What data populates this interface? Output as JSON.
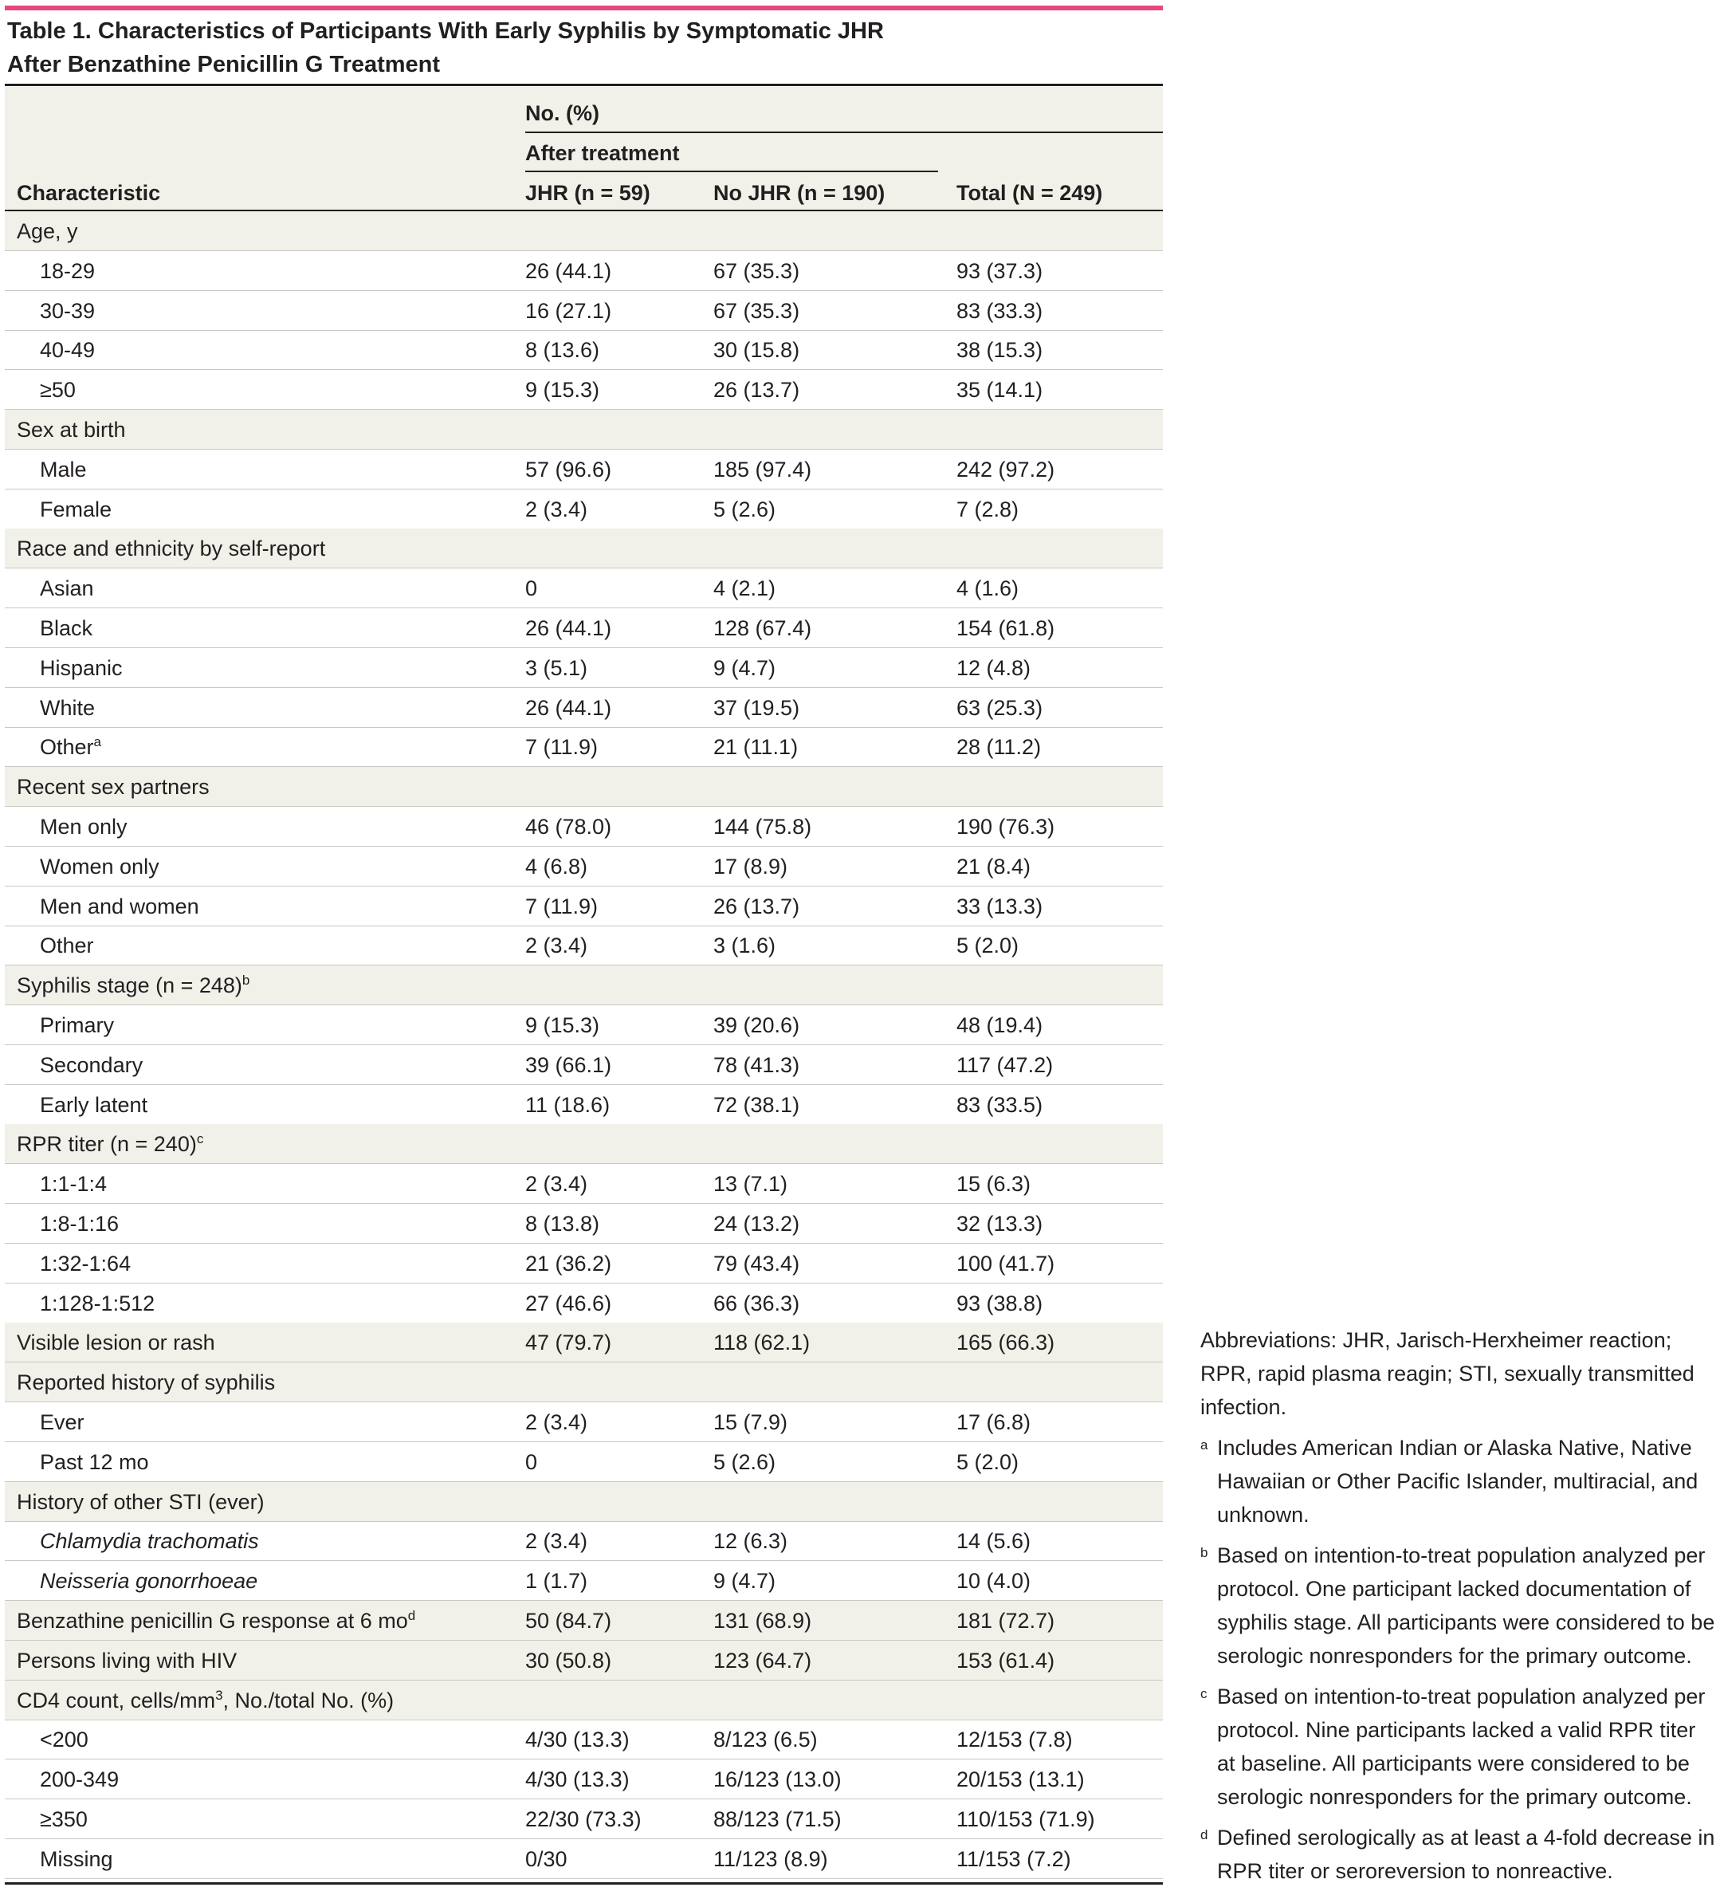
{
  "table": {
    "title_line1": "Table 1. Characteristics of Participants With Early Syphilis by Symptomatic JHR",
    "title_line2": "After Benzathine Penicillin G Treatment",
    "header": {
      "no_pct": "No. (%)",
      "after_treatment": "After treatment",
      "characteristic": "Characteristic",
      "jhr": "JHR (n = 59)",
      "nojhr": "No JHR (n = 190)",
      "total": "Total (N = 249)"
    },
    "rows": [
      {
        "label": "Age, y",
        "level": 0,
        "jhr": "",
        "nojhr": "",
        "total": ""
      },
      {
        "label": "18-29",
        "level": 1,
        "jhr": "26 (44.1)",
        "nojhr": "67 (35.3)",
        "total": "93 (37.3)"
      },
      {
        "label": "30-39",
        "level": 1,
        "jhr": "16 (27.1)",
        "nojhr": "67 (35.3)",
        "total": "83 (33.3)"
      },
      {
        "label": "40-49",
        "level": 1,
        "jhr": "8 (13.6)",
        "nojhr": "30 (15.8)",
        "total": "38 (15.3)"
      },
      {
        "label": "≥50",
        "level": 1,
        "jhr": "9 (15.3)",
        "nojhr": "26 (13.7)",
        "total": "35 (14.1)"
      },
      {
        "label": "Sex at birth",
        "level": 0,
        "jhr": "",
        "nojhr": "",
        "total": ""
      },
      {
        "label": "Male",
        "level": 1,
        "jhr": "57 (96.6)",
        "nojhr": "185 (97.4)",
        "total": "242 (97.2)"
      },
      {
        "label": "Female",
        "level": 1,
        "jhr": "2 (3.4)",
        "nojhr": "5 (2.6)",
        "total": "7 (2.8)"
      },
      {
        "label": "Race and ethnicity by self-report",
        "level": 0,
        "jhr": "",
        "nojhr": "",
        "total": ""
      },
      {
        "label": "Asian",
        "level": 1,
        "jhr": "0",
        "nojhr": "4 (2.1)",
        "total": "4 (1.6)"
      },
      {
        "label": "Black",
        "level": 1,
        "jhr": "26 (44.1)",
        "nojhr": "128 (67.4)",
        "total": "154 (61.8)"
      },
      {
        "label": "Hispanic",
        "level": 1,
        "jhr": "3 (5.1)",
        "nojhr": "9 (4.7)",
        "total": "12 (4.8)"
      },
      {
        "label": "White",
        "level": 1,
        "jhr": "26 (44.1)",
        "nojhr": "37 (19.5)",
        "total": "63 (25.3)"
      },
      {
        "label": "Other",
        "sup": "a",
        "level": 1,
        "jhr": "7 (11.9)",
        "nojhr": "21 (11.1)",
        "total": "28 (11.2)"
      },
      {
        "label": "Recent sex partners",
        "level": 0,
        "jhr": "",
        "nojhr": "",
        "total": ""
      },
      {
        "label": "Men only",
        "level": 1,
        "jhr": "46 (78.0)",
        "nojhr": "144 (75.8)",
        "total": "190 (76.3)"
      },
      {
        "label": "Women only",
        "level": 1,
        "jhr": "4 (6.8)",
        "nojhr": "17 (8.9)",
        "total": "21 (8.4)"
      },
      {
        "label": "Men and women",
        "level": 1,
        "jhr": "7 (11.9)",
        "nojhr": "26 (13.7)",
        "total": "33 (13.3)"
      },
      {
        "label": "Other",
        "level": 1,
        "jhr": "2 (3.4)",
        "nojhr": "3 (1.6)",
        "total": "5 (2.0)"
      },
      {
        "label": "Syphilis stage (n = 248)",
        "sup": "b",
        "level": 0,
        "jhr": "",
        "nojhr": "",
        "total": ""
      },
      {
        "label": "Primary",
        "level": 1,
        "jhr": "9 (15.3)",
        "nojhr": "39 (20.6)",
        "total": "48 (19.4)"
      },
      {
        "label": "Secondary",
        "level": 1,
        "jhr": "39 (66.1)",
        "nojhr": "78 (41.3)",
        "total": "117 (47.2)"
      },
      {
        "label": "Early latent",
        "level": 1,
        "jhr": "11 (18.6)",
        "nojhr": "72 (38.1)",
        "total": "83 (33.5)"
      },
      {
        "label": "RPR titer (n = 240)",
        "sup": "c",
        "level": 0,
        "jhr": "",
        "nojhr": "",
        "total": ""
      },
      {
        "label": "1:1-1:4",
        "level": 1,
        "jhr": "2 (3.4)",
        "nojhr": "13 (7.1)",
        "total": "15 (6.3)"
      },
      {
        "label": "1:8-1:16",
        "level": 1,
        "jhr": "8 (13.8)",
        "nojhr": "24 (13.2)",
        "total": "32 (13.3)"
      },
      {
        "label": "1:32-1:64",
        "level": 1,
        "jhr": "21 (36.2)",
        "nojhr": "79 (43.4)",
        "total": "100 (41.7)"
      },
      {
        "label": "1:128-1:512",
        "level": 1,
        "jhr": "27 (46.6)",
        "nojhr": "66 (36.3)",
        "total": "93 (38.8)"
      },
      {
        "label": "Visible lesion or rash",
        "level": 0,
        "jhr": "47 (79.7)",
        "nojhr": "118 (62.1)",
        "total": "165 (66.3)"
      },
      {
        "label": "Reported history of syphilis",
        "level": 0,
        "jhr": "",
        "nojhr": "",
        "total": ""
      },
      {
        "label": "Ever",
        "level": 1,
        "jhr": "2 (3.4)",
        "nojhr": "15 (7.9)",
        "total": "17 (6.8)"
      },
      {
        "label": "Past 12 mo",
        "level": 1,
        "jhr": "0",
        "nojhr": "5 (2.6)",
        "total": "5 (2.0)"
      },
      {
        "label": "History of other STI (ever)",
        "level": 0,
        "jhr": "",
        "nojhr": "",
        "total": ""
      },
      {
        "label": "Chlamydia trachomatis",
        "italic": true,
        "level": 1,
        "jhr": "2 (3.4)",
        "nojhr": "12 (6.3)",
        "total": "14 (5.6)"
      },
      {
        "label": "Neisseria gonorrhoeae",
        "italic": true,
        "level": 1,
        "jhr": "1 (1.7)",
        "nojhr": "9 (4.7)",
        "total": "10 (4.0)"
      },
      {
        "label": "Benzathine penicillin G response at 6 mo",
        "sup": "d",
        "level": 0,
        "jhr": "50 (84.7)",
        "nojhr": "131 (68.9)",
        "total": "181 (72.7)"
      },
      {
        "label": "Persons living with HIV",
        "level": 0,
        "jhr": "30 (50.8)",
        "nojhr": "123 (64.7)",
        "total": "153 (61.4)"
      },
      {
        "label": "CD4 count, cells/mm",
        "sup": "3",
        "suffix": ", No./total No. (%)",
        "level": 0,
        "jhr": "",
        "nojhr": "",
        "total": ""
      },
      {
        "label": "<200",
        "level": 1,
        "jhr": "4/30 (13.3)",
        "nojhr": "8/123 (6.5)",
        "total": "12/153 (7.8)"
      },
      {
        "label": "200-349",
        "level": 1,
        "jhr": "4/30 (13.3)",
        "nojhr": "16/123 (13.0)",
        "total": "20/153 (13.1)"
      },
      {
        "label": "≥350",
        "level": 1,
        "jhr": "22/30 (73.3)",
        "nojhr": "88/123 (71.5)",
        "total": "110/153 (71.9)"
      },
      {
        "label": "Missing",
        "level": 1,
        "jhr": "0/30",
        "nojhr": "11/123 (8.9)",
        "total": "11/153 (7.2)"
      }
    ]
  },
  "notes": {
    "abbreviations": "Abbreviations: JHR, Jarisch-Herxheimer reaction; RPR, rapid plasma reagin; STI, sexually transmitted infection.",
    "footnotes": [
      {
        "mark": "a",
        "text": "Includes American Indian or Alaska Native, Native Hawaiian or Other Pacific Islander, multiracial, and unknown."
      },
      {
        "mark": "b",
        "text": "Based on intention-to-treat population analyzed per protocol. One participant lacked documentation of syphilis stage. All participants were considered to be serologic nonresponders for the primary outcome."
      },
      {
        "mark": "c",
        "text": "Based on intention-to-treat population analyzed per protocol. Nine participants lacked a valid RPR titer at baseline. All participants were considered to be serologic nonresponders for the primary outcome."
      },
      {
        "mark": "d",
        "text": "Defined serologically as at least a 4-fold decrease in RPR titer or seroreversion to nonreactive."
      }
    ]
  }
}
